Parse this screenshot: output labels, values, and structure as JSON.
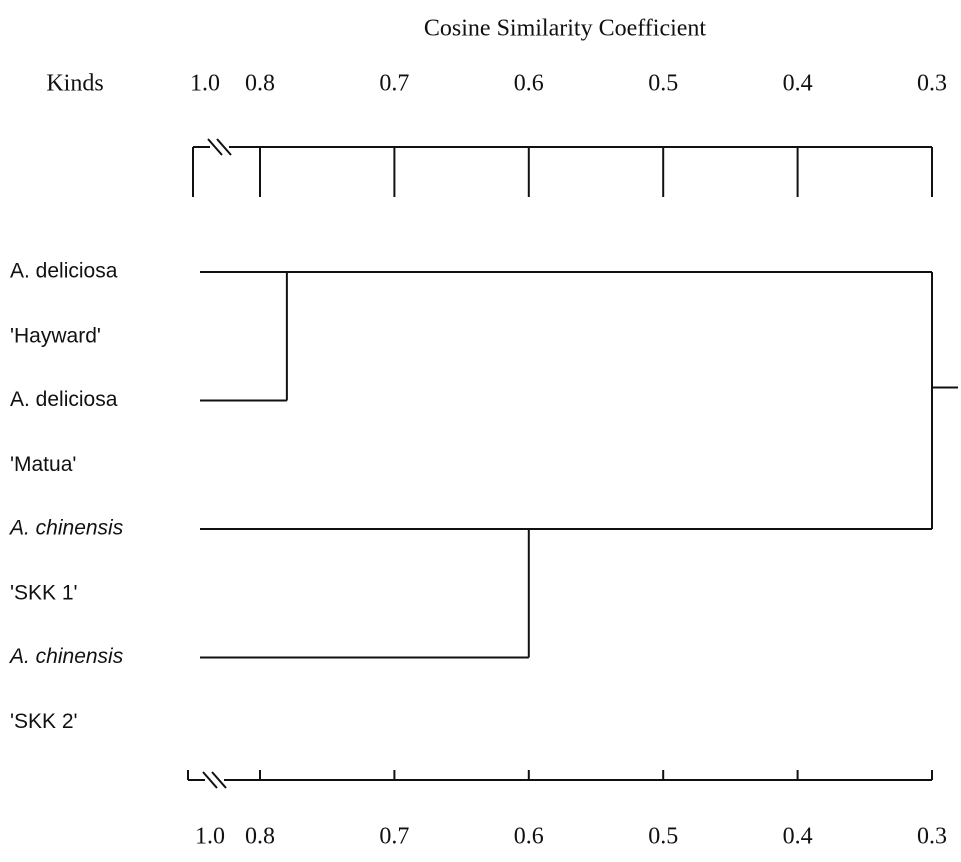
{
  "chart_data": {
    "type": "dendrogram",
    "title": "Cosine Similarity Coefficient",
    "leaf_header": "Kinds",
    "leaves": [
      {
        "name": "A. deliciosa",
        "cultivar": "'Hayward'",
        "italic": false
      },
      {
        "name": "A. deliciosa",
        "cultivar": "'Matua'",
        "italic": false
      },
      {
        "name": "A. chinensis",
        "cultivar": "'SKK 1'",
        "italic": true
      },
      {
        "name": "A. chinensis",
        "cultivar": "'SKK 2'",
        "italic": true
      }
    ],
    "merges": [
      {
        "leaves": [
          0,
          1
        ],
        "height": 0.78
      },
      {
        "leaves": [
          2,
          3
        ],
        "height": 0.6
      },
      {
        "clusters": [
          0,
          1
        ],
        "height": 0.3
      }
    ],
    "xlim": [
      0.8,
      0.3
    ],
    "xticks": [
      {
        "value": 1,
        "label": "1.0"
      },
      0.8,
      0.7,
      0.6,
      0.5,
      0.4,
      0.3
    ],
    "axis_break": true
  }
}
